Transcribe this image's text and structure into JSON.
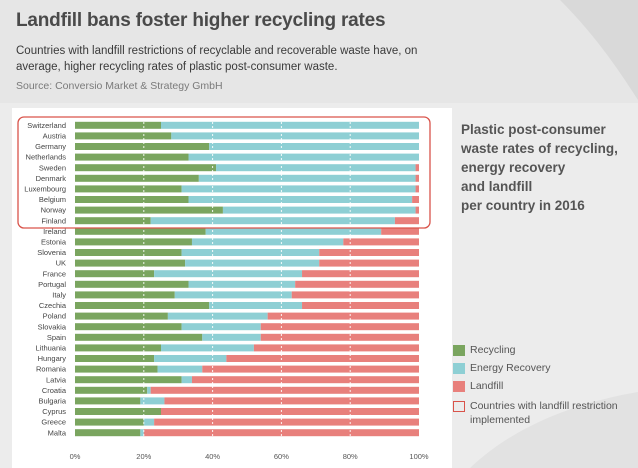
{
  "header": {
    "title": "Landfill bans foster higher recycling rates",
    "subtitle": "Countries with landfill restrictions of recyclable and recoverable waste have, on average, higher recycling rates of plastic post-consumer waste.",
    "source": "Source: Conversio Market & Strategy GmbH"
  },
  "side_title": "Plastic post-consumer\nwaste rates of recycling,\nenergy recovery\nand landfill\nper country in 2016",
  "colors": {
    "recycling": "#7aa55f",
    "energy_recovery": "#8ecfd4",
    "landfill": "#e8807c",
    "highlight": "#d9534a"
  },
  "legend": [
    {
      "label": "Recycling",
      "color": "#7aa55f",
      "kind": "fill"
    },
    {
      "label": "Energy Recovery",
      "color": "#8ecfd4",
      "kind": "fill"
    },
    {
      "label": "Landfill",
      "color": "#e8807c",
      "kind": "fill"
    },
    {
      "label": "Countries with landfill restriction implemented",
      "color": "#d9534a",
      "kind": "outline"
    }
  ],
  "chart_data": {
    "type": "bar",
    "orientation": "horizontal",
    "stacked": true,
    "title": "Plastic post-consumer waste rates of recycling, energy recovery and landfill per country in 2016",
    "categories": [
      "Switzerland",
      "Austria",
      "Germany",
      "Netherlands",
      "Sweden",
      "Denmark",
      "Luxembourg",
      "Belgium",
      "Norway",
      "Finland",
      "Ireland",
      "Estonia",
      "Slovenia",
      "UK",
      "France",
      "Portugal",
      "Italy",
      "Czechia",
      "Poland",
      "Slovakia",
      "Spain",
      "Lithuania",
      "Hungary",
      "Romania",
      "Latvia",
      "Croatia",
      "Bulgaria",
      "Cyprus",
      "Greece",
      "Malta"
    ],
    "series": [
      {
        "name": "Recycling",
        "values": [
          25,
          28,
          39,
          33,
          41,
          36,
          31,
          33,
          43,
          22,
          38,
          34,
          31,
          32,
          23,
          33,
          29,
          39,
          27,
          31,
          37,
          25,
          23,
          24,
          31,
          21,
          19,
          25,
          20,
          19
        ]
      },
      {
        "name": "Energy Recovery",
        "values": [
          75,
          72,
          61,
          67,
          58,
          63,
          68,
          65,
          56,
          71,
          51,
          44,
          40,
          39,
          43,
          31,
          34,
          27,
          29,
          23,
          17,
          27,
          21,
          13,
          3,
          1,
          7,
          0,
          3,
          1
        ]
      },
      {
        "name": "Landfill",
        "values": [
          0,
          0,
          0,
          0,
          1,
          1,
          1,
          2,
          1,
          7,
          11,
          22,
          29,
          29,
          34,
          36,
          37,
          34,
          44,
          46,
          46,
          48,
          56,
          63,
          66,
          78,
          74,
          75,
          77,
          80
        ]
      }
    ],
    "highlighted_categories": [
      "Switzerland",
      "Austria",
      "Germany",
      "Netherlands",
      "Sweden",
      "Denmark",
      "Luxembourg",
      "Belgium",
      "Norway",
      "Finland"
    ],
    "xlim": [
      0,
      100
    ],
    "x_ticks": [
      "0%",
      "20%",
      "40%",
      "60%",
      "80%",
      "100%"
    ],
    "grid": true
  }
}
